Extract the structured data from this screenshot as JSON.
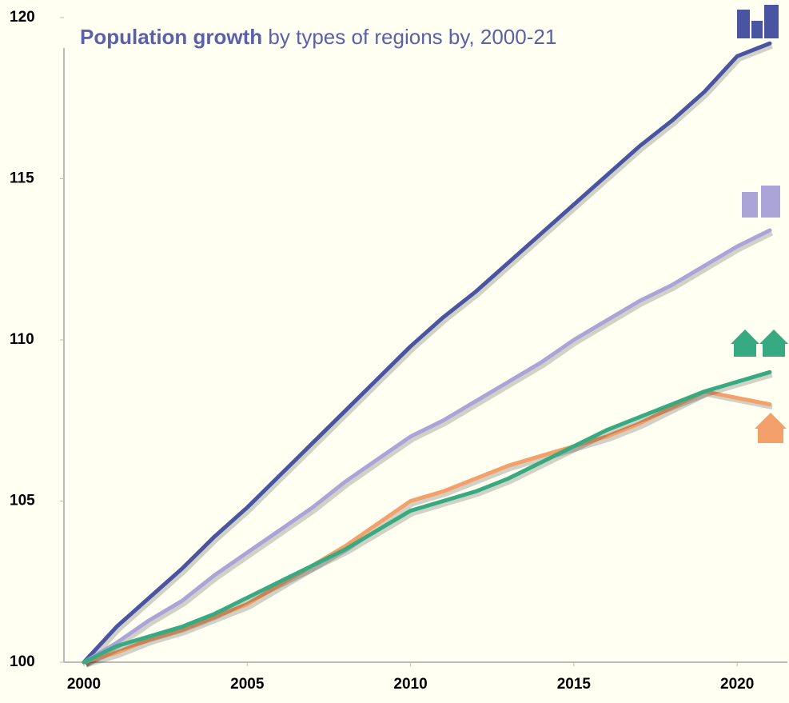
{
  "chart_data": {
    "type": "line",
    "title": "Population growth",
    "subtitle": "by types of regions by, 2000-21",
    "x": [
      2000,
      2001,
      2002,
      2003,
      2004,
      2005,
      2006,
      2007,
      2008,
      2009,
      2010,
      2011,
      2012,
      2013,
      2014,
      2015,
      2016,
      2017,
      2018,
      2019,
      2020,
      2021
    ],
    "series": [
      {
        "color": "#4a55a2",
        "values": [
          100,
          101.1,
          102.0,
          102.9,
          103.9,
          104.8,
          105.8,
          106.8,
          107.8,
          108.8,
          109.8,
          110.7,
          111.5,
          112.4,
          113.3,
          114.2,
          115.1,
          116.0,
          116.8,
          117.7,
          118.8,
          119.2
        ]
      },
      {
        "color": "#aaa4d8",
        "values": [
          100,
          100.6,
          101.3,
          101.9,
          102.7,
          103.4,
          104.1,
          104.8,
          105.6,
          106.3,
          107.0,
          107.5,
          108.1,
          108.7,
          109.3,
          110.0,
          110.6,
          111.2,
          111.7,
          112.3,
          112.9,
          113.4
        ]
      },
      {
        "color": "#f4a06a",
        "values": [
          100,
          100.3,
          100.7,
          101.0,
          101.4,
          101.8,
          102.4,
          103.0,
          103.6,
          104.3,
          105.0,
          105.3,
          105.7,
          106.1,
          106.4,
          106.7,
          107.0,
          107.4,
          107.9,
          108.4,
          108.2,
          108.0
        ]
      },
      {
        "color": "#38aa82",
        "values": [
          100,
          100.5,
          100.8,
          101.1,
          101.5,
          102.0,
          102.5,
          103.0,
          103.5,
          104.1,
          104.7,
          105.0,
          105.3,
          105.7,
          106.2,
          106.7,
          107.2,
          107.6,
          108.0,
          108.4,
          108.7,
          109.0
        ]
      }
    ],
    "xlim": [
      2000,
      2021
    ],
    "xticks": [
      2000,
      2005,
      2010,
      2015,
      2020
    ],
    "ylim": [
      100,
      120
    ],
    "yticks": [
      100,
      105,
      110,
      115,
      120
    ]
  }
}
